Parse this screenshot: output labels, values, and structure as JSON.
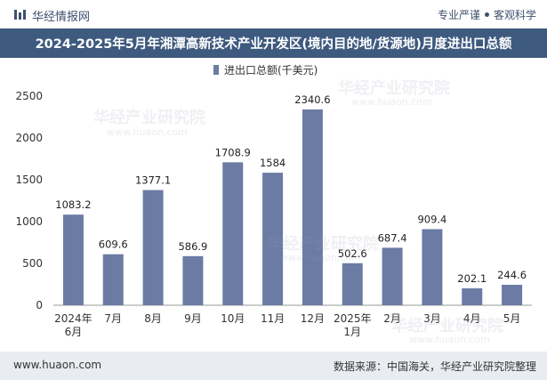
{
  "header": {
    "brand": "华经情报网",
    "tagline_left": "专业严谨",
    "tagline_right": "客观科学"
  },
  "title": "2024-2025年5月年湘潭高新技术产业开发区(境内目的地/货源地)月度进出口总额",
  "footer": {
    "url": "www.huaon.com",
    "source": "数据来源：中国海关，华经产业研究院整理"
  },
  "watermark": {
    "text": "华经产业研究院",
    "url": "www.huaon.com"
  },
  "colors": {
    "bar": "#6b7ba4",
    "title_bg": "#3e5a7f",
    "footer_bg": "#e9ecf1"
  },
  "chart_data": {
    "type": "bar",
    "legend": "进出口总额(千美元)",
    "legend_position": "top-center",
    "categories": [
      "2024年\n6月",
      "7月",
      "8月",
      "9月",
      "10月",
      "11月",
      "12月",
      "2025年\n1月",
      "2月",
      "3月",
      "4月",
      "5月"
    ],
    "values": [
      1083.2,
      609.6,
      1377.1,
      586.9,
      1708.9,
      1584,
      2340.6,
      502.6,
      687.4,
      909.4,
      202.1,
      244.6
    ],
    "value_labels": [
      "1083.2",
      "609.6",
      "1377.1",
      "586.9",
      "1708.9",
      "1584",
      "2340.6",
      "502.6",
      "687.4",
      "909.4",
      "202.1",
      "244.6"
    ],
    "ylim": [
      0,
      2500
    ],
    "yticks": [
      0,
      500,
      1000,
      1500,
      2000,
      2500
    ],
    "grid": false
  }
}
